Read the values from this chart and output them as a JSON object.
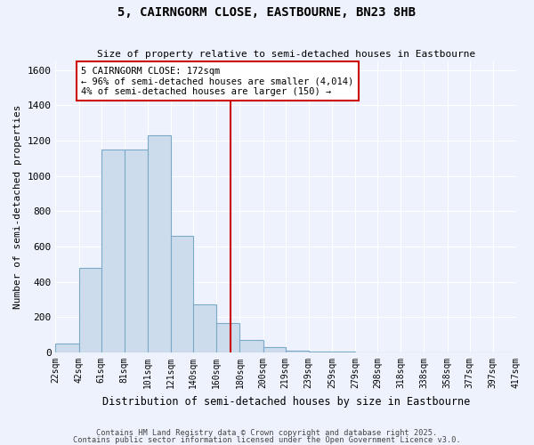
{
  "title": "5, CAIRNGORM CLOSE, EASTBOURNE, BN23 8HB",
  "subtitle": "Size of property relative to semi-detached houses in Eastbourne",
  "xlabel": "Distribution of semi-detached houses by size in Eastbourne",
  "ylabel": "Number of semi-detached properties",
  "bar_color": "#ccdcec",
  "bar_edge_color": "#7aaac8",
  "background_color": "#eef2fc",
  "grid_color": "#ffffff",
  "vline_x": 172,
  "vline_color": "#cc0000",
  "annotation_text": "5 CAIRNGORM CLOSE: 172sqm\n← 96% of semi-detached houses are smaller (4,014)\n4% of semi-detached houses are larger (150) →",
  "annotation_box_color": "#cc0000",
  "bin_edges": [
    22,
    42,
    61,
    81,
    101,
    121,
    140,
    160,
    180,
    200,
    219,
    239,
    259,
    279,
    298,
    318,
    338,
    358,
    377,
    397,
    417
  ],
  "bin_labels": [
    "22sqm",
    "42sqm",
    "61sqm",
    "81sqm",
    "101sqm",
    "121sqm",
    "140sqm",
    "160sqm",
    "180sqm",
    "200sqm",
    "219sqm",
    "239sqm",
    "259sqm",
    "279sqm",
    "298sqm",
    "318sqm",
    "338sqm",
    "358sqm",
    "377sqm",
    "397sqm",
    "417sqm"
  ],
  "bar_heights": [
    50,
    480,
    1150,
    1150,
    1230,
    660,
    270,
    165,
    70,
    30,
    10,
    5,
    3,
    2,
    1,
    1,
    1,
    0,
    0,
    0
  ],
  "ylim": [
    0,
    1650
  ],
  "yticks": [
    0,
    200,
    400,
    600,
    800,
    1000,
    1200,
    1400,
    1600
  ],
  "footnote1": "Contains HM Land Registry data © Crown copyright and database right 2025.",
  "footnote2": "Contains public sector information licensed under the Open Government Licence v3.0."
}
